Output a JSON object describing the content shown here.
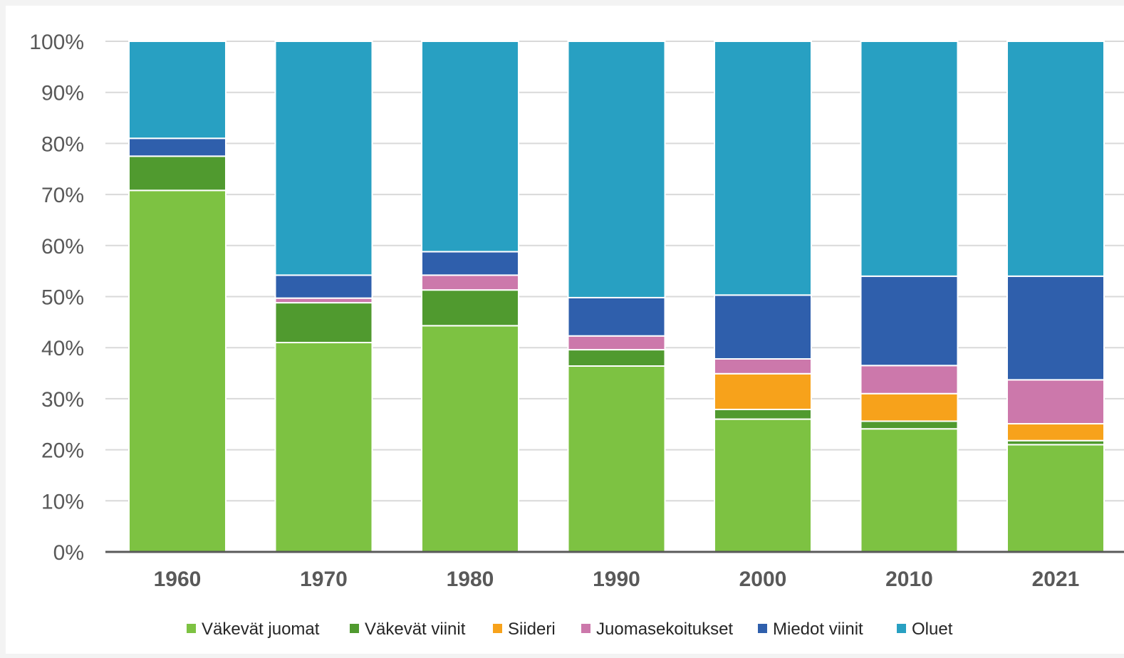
{
  "chart_data": {
    "type": "bar",
    "stacked": true,
    "categories": [
      "1960",
      "1970",
      "1980",
      "1990",
      "2000",
      "2010",
      "2021"
    ],
    "y_ticks": [
      "0%",
      "10%",
      "20%",
      "30%",
      "40%",
      "50%",
      "60%",
      "70%",
      "80%",
      "90%",
      "100%"
    ],
    "ylim": [
      0,
      100
    ],
    "grid": true,
    "legend_position": "bottom",
    "series": [
      {
        "name": "Väkevät juomat",
        "color": "#7dc242",
        "values": [
          70.8,
          41.0,
          44.3,
          36.4,
          26.0,
          24.1,
          21.0
        ]
      },
      {
        "name": "Väkevät viinit",
        "color": "#509a2f",
        "values": [
          6.7,
          7.8,
          7.0,
          3.2,
          1.9,
          1.5,
          0.8
        ]
      },
      {
        "name": "Siideri",
        "color": "#f7a21b",
        "values": [
          0,
          0,
          0,
          0,
          7.0,
          5.4,
          3.3
        ]
      },
      {
        "name": "Juomasekoitukset",
        "color": "#cc78ab",
        "values": [
          0,
          0.9,
          2.9,
          2.7,
          2.9,
          5.5,
          8.6
        ]
      },
      {
        "name": "Miedot viinit",
        "color": "#2f5fac",
        "values": [
          3.5,
          4.5,
          4.6,
          7.5,
          12.5,
          17.5,
          20.3
        ]
      },
      {
        "name": "Oluet",
        "color": "#28a0c2",
        "values": [
          19.0,
          45.8,
          41.2,
          50.2,
          49.7,
          46.0,
          46.0
        ]
      }
    ]
  }
}
